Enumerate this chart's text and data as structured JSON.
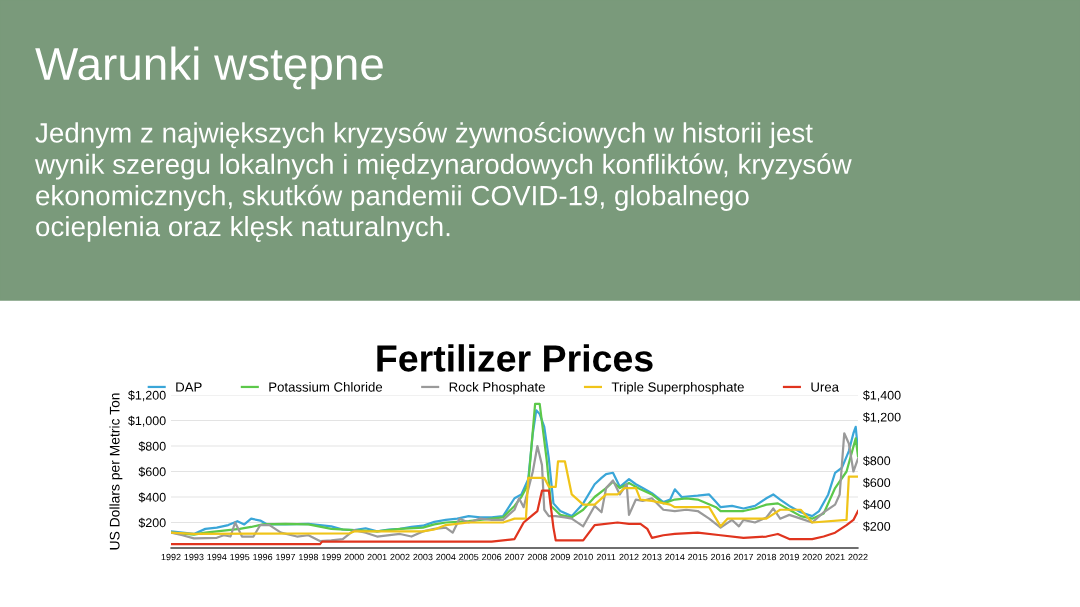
{
  "chart_data": {
    "type": "line",
    "title": "Fertilizer Prices",
    "ylabel": "US Dollars per Metric Ton",
    "annotations": [
      "Warunki wstępne",
      "Jednym z największych kryzysów żywnościowych w historii jest\nwynik szeregu lokalnych i międzynarodowych konfliktów, kryzysów\nekonomicznych, skutków pandemii COVID-19, globalnego\nocieplenia oraz klęsk naturalnych."
    ],
    "xlim": [
      1992,
      2022
    ],
    "xticks": [
      1992,
      1993,
      1994,
      1995,
      1996,
      1997,
      1998,
      1999,
      2000,
      2001,
      2002,
      2003,
      2004,
      2005,
      2006,
      2007,
      2008,
      2009,
      2010,
      2011,
      2012,
      2013,
      2014,
      2015,
      2016,
      2017,
      2018,
      2019,
      2020,
      2021,
      2022
    ],
    "ylim": [
      0,
      1200
    ],
    "yticks": [
      {
        "value": 200,
        "label": "$200"
      },
      {
        "value": 400,
        "label": "$400"
      },
      {
        "value": 600,
        "label": "$600"
      },
      {
        "value": 800,
        "label": "$800"
      },
      {
        "value": 1000,
        "label": "$1,000"
      },
      {
        "value": 1200,
        "label": "$1,200"
      }
    ],
    "y2lim": [
      0,
      1400
    ],
    "y2ticks": [
      {
        "value": 200,
        "label": "$200"
      },
      {
        "value": 400,
        "label": "$400"
      },
      {
        "value": 600,
        "label": "$600"
      },
      {
        "value": 800,
        "label": "$800"
      },
      {
        "value": 1200,
        "label": "$1,200"
      },
      {
        "value": 1400,
        "label": "$1,400"
      }
    ],
    "grid": "y",
    "legend": "top",
    "marker": "none",
    "line_style": "solid",
    "series": [
      {
        "name": "DAP",
        "color": "#3aa6d8",
        "x": [
          1992,
          1993,
          1993.5,
          1994,
          1994.5,
          1994.9,
          1995.2,
          1995.5,
          1995.9,
          1996.2,
          1997,
          1998,
          1998.5,
          1999,
          1999.5,
          2000,
          2000.5,
          2001,
          2001.5,
          2002,
          2002.5,
          2003,
          2003.5,
          2004,
          2004.5,
          2005,
          2005.5,
          2006,
          2006.5,
          2007,
          2007.3,
          2007.6,
          2007.8,
          2007.95,
          2008.1,
          2008.3,
          2008.5,
          2008.7,
          2009,
          2009.5,
          2010,
          2010.5,
          2010.8,
          2011,
          2011.3,
          2011.6,
          2012,
          2012.3,
          2012.6,
          2013,
          2013.5,
          2013.8,
          2014,
          2014.3,
          2015,
          2015.5,
          2015.8,
          2016,
          2016.5,
          2017,
          2017.5,
          2018,
          2018.3,
          2018.6,
          2019,
          2019.5,
          2020,
          2020.3,
          2020.7,
          2021,
          2021.3,
          2021.6,
          2021.8,
          2021.9,
          2022
        ],
        "values": [
          130,
          110,
          150,
          160,
          180,
          210,
          185,
          230,
          215,
          185,
          185,
          190,
          180,
          170,
          145,
          140,
          155,
          130,
          145,
          150,
          165,
          175,
          205,
          220,
          230,
          250,
          240,
          240,
          250,
          390,
          420,
          540,
          900,
          1080,
          1050,
          950,
          700,
          350,
          290,
          250,
          350,
          500,
          550,
          580,
          590,
          480,
          540,
          500,
          470,
          430,
          360,
          380,
          460,
          400,
          410,
          420,
          360,
          320,
          330,
          310,
          330,
          390,
          420,
          380,
          330,
          280,
          250,
          290,
          420,
          590,
          630,
          760,
          900,
          950,
          760
        ]
      },
      {
        "name": "Potassium Chloride",
        "color": "#5cc84a",
        "x": [
          1992,
          1993,
          1993.5,
          1994,
          1995,
          1995.5,
          1996,
          1997,
          1998,
          1999,
          2000,
          2001,
          2002,
          2003,
          2003.5,
          2004,
          2005,
          2006,
          2006.5,
          2007,
          2007.3,
          2007.6,
          2007.9,
          2008.1,
          2008.4,
          2008.6,
          2009,
          2009.5,
          2010,
          2010.5,
          2011,
          2011.3,
          2011.6,
          2012,
          2012.5,
          2013,
          2013.5,
          2014,
          2014.5,
          2015,
          2015.8,
          2016,
          2017,
          2017.5,
          2018,
          2018.5,
          2019,
          2019.5,
          2020,
          2020.5,
          2021,
          2021.5,
          2021.9,
          2022
        ],
        "values": [
          120,
          105,
          120,
          130,
          150,
          165,
          185,
          190,
          185,
          150,
          140,
          130,
          150,
          160,
          185,
          200,
          210,
          230,
          240,
          330,
          400,
          500,
          1130,
          1130,
          700,
          330,
          260,
          240,
          300,
          400,
          470,
          520,
          470,
          510,
          460,
          420,
          350,
          380,
          390,
          380,
          320,
          290,
          290,
          310,
          340,
          350,
          300,
          250,
          230,
          270,
          470,
          600,
          860,
          720
        ]
      },
      {
        "name": "Rock Phosphate",
        "color": "#9a9a9a",
        "x": [
          1992,
          1992.5,
          1993,
          1994,
          1994.3,
          1994.6,
          1994.8,
          1995.1,
          1995.6,
          1995.9,
          1996.3,
          1996.8,
          1997.5,
          1998,
          1998.5,
          1999,
          1999.5,
          2000,
          2000.5,
          2001,
          2002,
          2002.5,
          2003,
          2003.5,
          2004,
          2004.3,
          2004.6,
          2005,
          2005.5,
          2006,
          2006.5,
          2007,
          2007.2,
          2007.4,
          2007.6,
          2007.8,
          2008.0,
          2008.2,
          2008.3,
          2008.5,
          2008.8,
          2009.2,
          2009.5,
          2010,
          2010.5,
          2010.8,
          2011,
          2011.3,
          2011.6,
          2011.9,
          2012,
          2012.3,
          2012.6,
          2013,
          2013.5,
          2014,
          2014.5,
          2015,
          2015.5,
          2016,
          2016.5,
          2016.8,
          2017,
          2017.5,
          2018,
          2018.3,
          2018.6,
          2019,
          2019.5,
          2020,
          2020.5,
          2021,
          2021.2,
          2021.4,
          2021.6,
          2021.8,
          2022
        ],
        "values": [
          120,
          100,
          75,
          80,
          100,
          90,
          200,
          90,
          90,
          180,
          180,
          120,
          90,
          100,
          55,
          60,
          70,
          140,
          120,
          90,
          110,
          90,
          130,
          150,
          160,
          120,
          230,
          200,
          230,
          220,
          220,
          300,
          390,
          320,
          460,
          600,
          800,
          650,
          300,
          250,
          250,
          240,
          230,
          170,
          330,
          280,
          470,
          530,
          420,
          500,
          260,
          380,
          370,
          390,
          300,
          290,
          300,
          290,
          230,
          160,
          220,
          170,
          220,
          200,
          240,
          310,
          230,
          260,
          230,
          200,
          280,
          340,
          420,
          900,
          820,
          600,
          700
        ]
      },
      {
        "name": "Triple Superphosphate",
        "color": "#f0c419",
        "x": [
          1992,
          1993,
          1999.8,
          2000,
          2003,
          2003.5,
          2004,
          2005,
          2006.5,
          2007,
          2007.5,
          2007.6,
          2008.3,
          2008.5,
          2008.8,
          2008.9,
          2009.2,
          2009.5,
          2010,
          2010.5,
          2011,
          2011.5,
          2011.8,
          2012.3,
          2012.5,
          2013,
          2013.8,
          2014,
          2015.5,
          2016,
          2016.3,
          2018,
          2018.6,
          2019.5,
          2020,
          2021.5,
          2021.6,
          2022
        ],
        "values": [
          120,
          110,
          115,
          130,
          130,
          145,
          180,
          200,
          200,
          230,
          230,
          550,
          550,
          480,
          480,
          680,
          680,
          420,
          340,
          340,
          420,
          420,
          470,
          470,
          380,
          370,
          340,
          320,
          320,
          170,
          230,
          230,
          300,
          300,
          200,
          220,
          560,
          560
        ]
      },
      {
        "name": "Urea",
        "color": "#e0341e",
        "x": [
          1992,
          1998.5,
          1998.6,
          2006,
          2007,
          2007.4,
          2007.8,
          2008,
          2008.2,
          2008.5,
          2008.7,
          2008.8,
          2010,
          2010.5,
          2011.5,
          2012,
          2012.5,
          2012.8,
          2013,
          2013.5,
          2014,
          2015,
          2016,
          2017,
          2018,
          2018.5,
          2019,
          2020,
          2020.5,
          2021,
          2021.5,
          2021.8,
          2022
        ],
        "values": [
          30,
          30,
          50,
          50,
          70,
          200,
          260,
          290,
          450,
          450,
          160,
          60,
          60,
          180,
          200,
          190,
          190,
          150,
          80,
          100,
          110,
          120,
          100,
          80,
          90,
          110,
          70,
          70,
          90,
          120,
          180,
          220,
          290
        ]
      }
    ]
  }
}
